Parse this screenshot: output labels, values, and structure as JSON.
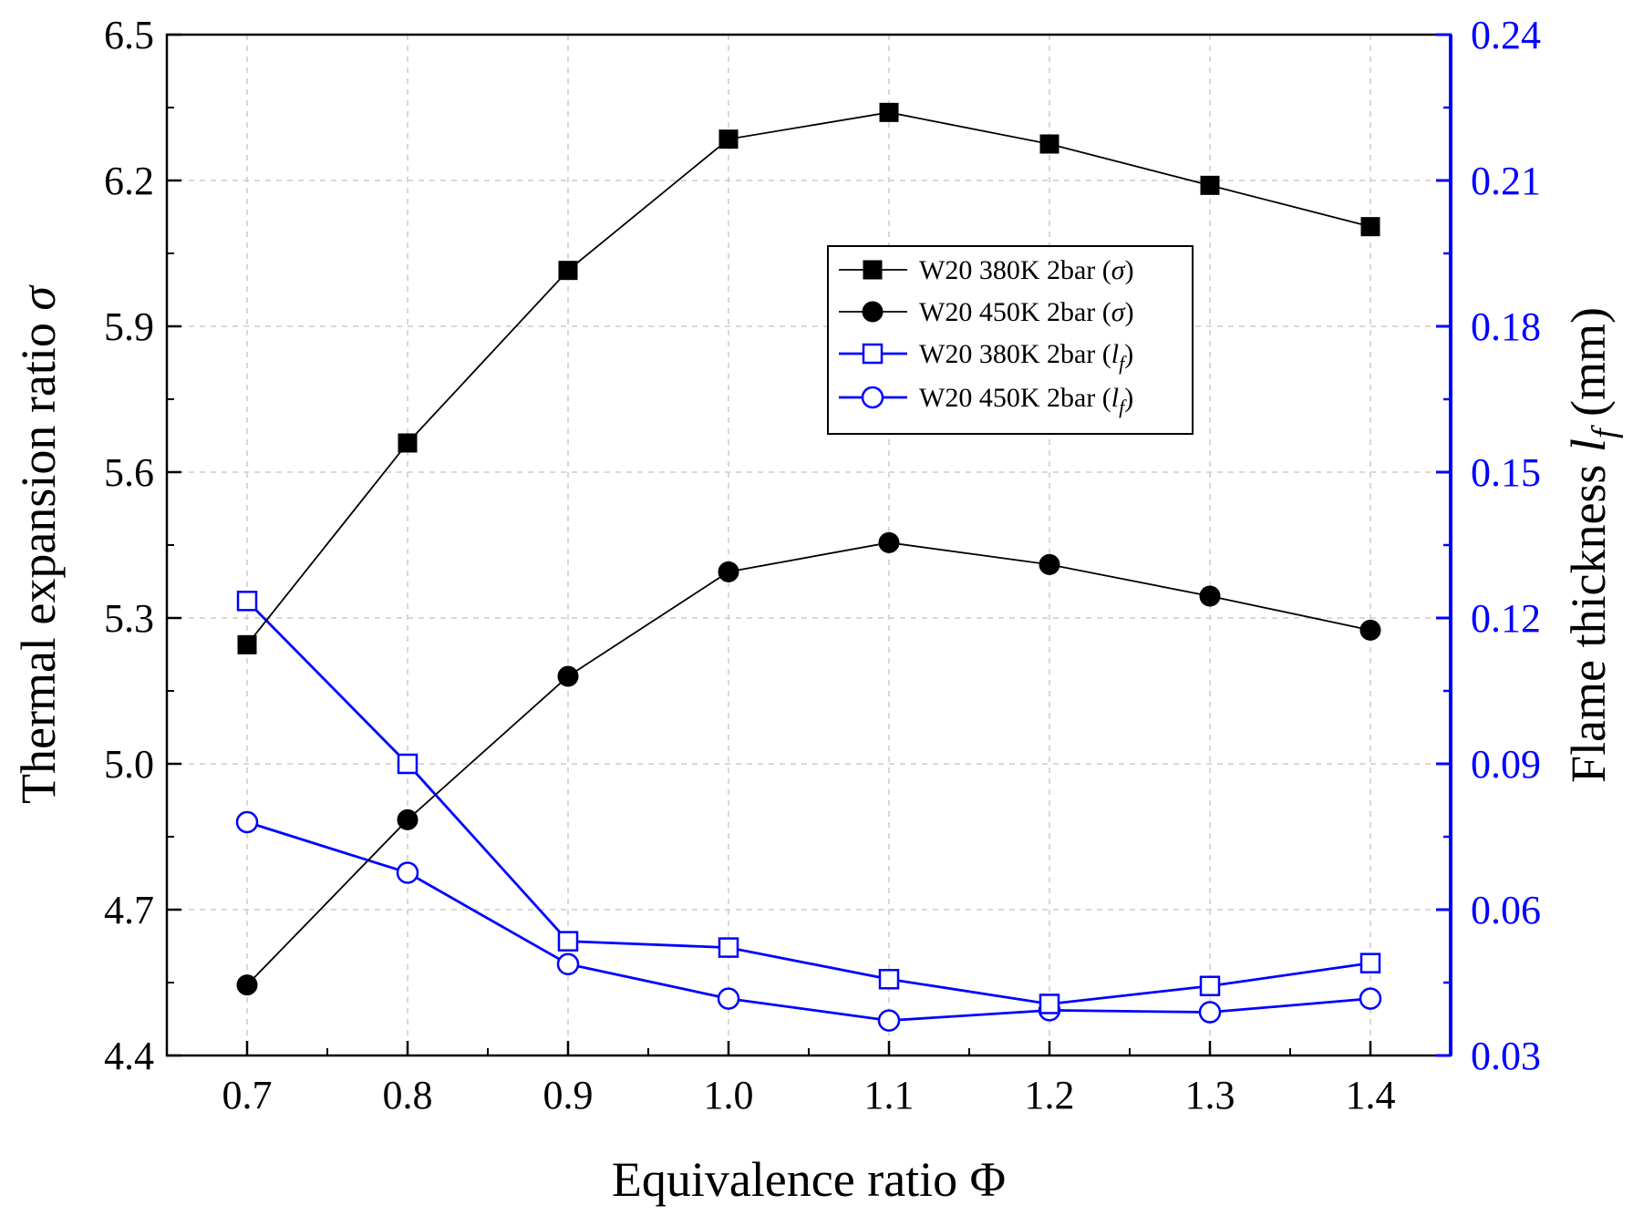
{
  "chart_data": {
    "type": "line",
    "title": "",
    "xlabel": "Equivalence ratio Φ",
    "ylabel_left": {
      "main": "Thermal expansion ratio ",
      "symbol": "σ"
    },
    "ylabel_right": {
      "main": "Flame thickness ",
      "symbol": "l",
      "subscript": "f",
      "unit": " (mm)"
    },
    "x": [
      0.7,
      0.8,
      0.9,
      1.0,
      1.1,
      1.2,
      1.3,
      1.4
    ],
    "x_tick_labels": [
      "0.7",
      "0.8",
      "0.9",
      "1.0",
      "1.1",
      "1.2",
      "1.3",
      "1.4"
    ],
    "xlim": [
      0.65,
      1.45
    ],
    "ylim_left": [
      4.4,
      6.5
    ],
    "ylim_right": [
      0.03,
      0.24
    ],
    "y_left_tick_labels": [
      "4.4",
      "4.7",
      "5.0",
      "5.3",
      "5.6",
      "5.9",
      "6.2",
      "6.5"
    ],
    "y_right_tick_labels": [
      "0.03",
      "0.06",
      "0.09",
      "0.12",
      "0.15",
      "0.18",
      "0.21",
      "0.24"
    ],
    "grid": true,
    "legend_position": "upper-center-right",
    "series": [
      {
        "name": "W20 380K 2bar (σ)",
        "label_main": "W20 380K 2bar (",
        "label_symbol": "σ",
        "label_sub": "",
        "axis": "left",
        "marker": "square-filled",
        "color": "#000000",
        "values": [
          5.245,
          5.66,
          6.015,
          6.285,
          6.34,
          6.275,
          6.19,
          6.105
        ]
      },
      {
        "name": "W20 450K 2bar (σ)",
        "label_main": "W20 450K 2bar (",
        "label_symbol": "σ",
        "label_sub": "",
        "axis": "left",
        "marker": "circle-filled",
        "color": "#000000",
        "values": [
          4.545,
          4.885,
          5.18,
          5.395,
          5.455,
          5.41,
          5.345,
          5.275
        ]
      },
      {
        "name": "W20 380K 2bar (lf)",
        "label_main": "W20 380K 2bar (",
        "label_symbol": "l",
        "label_sub": "f",
        "axis": "right",
        "marker": "square-open",
        "color": "#0000ff",
        "values": [
          0.1235,
          0.09,
          0.0535,
          0.0522,
          0.0457,
          0.0406,
          0.0443,
          0.049
        ]
      },
      {
        "name": "W20 450K 2bar (lf)",
        "label_main": "W20 450K 2bar (",
        "label_symbol": "l",
        "label_sub": "f",
        "axis": "right",
        "marker": "circle-open",
        "color": "#0000ff",
        "values": [
          0.078,
          0.0676,
          0.0488,
          0.0417,
          0.0372,
          0.0393,
          0.0389,
          0.0417
        ]
      }
    ]
  }
}
